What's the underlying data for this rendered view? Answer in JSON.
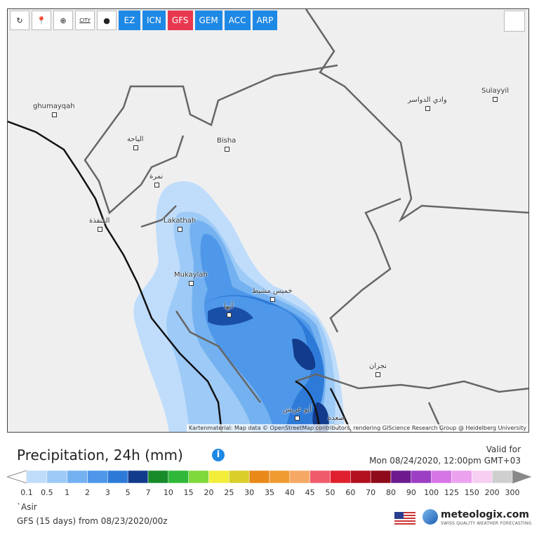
{
  "toolbar": {
    "icons": [
      "CITY"
    ],
    "models": [
      "EZ",
      "ICN",
      "GFS",
      "GEM",
      "ACC",
      "ARP"
    ],
    "active_model": 2
  },
  "map": {
    "places": [
      "ghumayqah",
      "الباحة",
      "Bisha",
      "نمرة",
      "القنفذة",
      "Lakathah",
      "Mukaylah",
      "خميس مشيط",
      "أبها",
      "نجران",
      "صعدة",
      "أبو عريش",
      "وادي الدواسر",
      "Sulayyil"
    ],
    "attribution": "Kartenmaterial: Map data © OpenStreetMap contributors, rendering GIScience Research Group @ Heidelberg University"
  },
  "header": {
    "title": "Precipitation, 24h (mm)",
    "info": "i",
    "valid_label": "Valid for",
    "valid_time": "Mon 08/24/2020, 12:00pm GMT+03"
  },
  "legend": {
    "labels": [
      "0.1",
      "0.5",
      "1",
      "2",
      "3",
      "5",
      "7",
      "10",
      "15",
      "20",
      "25",
      "30",
      "35",
      "40",
      "45",
      "50",
      "60",
      "70",
      "80",
      "90",
      "100",
      "125",
      "150",
      "200",
      "300"
    ],
    "colors": [
      "#bfdcfb",
      "#9dcaf6",
      "#74b1f0",
      "#4f97e8",
      "#2d7ad9",
      "#123b8c",
      "#178a2a",
      "#2fb83a",
      "#7fd93b",
      "#f2ee3a",
      "#d9cf2a",
      "#e8891a",
      "#f09a32",
      "#f5a864",
      "#ef5b6b",
      "#e0202e",
      "#b31020",
      "#8f0a1a",
      "#6d1b8f",
      "#9c3fc4",
      "#d675e6",
      "#eca1ef",
      "#f6cff3",
      "#cfcfcf"
    ]
  },
  "footer": {
    "region": "`Asir",
    "run": "GFS (15 days) from 08/23/2020/00z",
    "brand": "meteologix.com",
    "tagline": "SWISS QUALITY WEATHER FORECASTING"
  }
}
